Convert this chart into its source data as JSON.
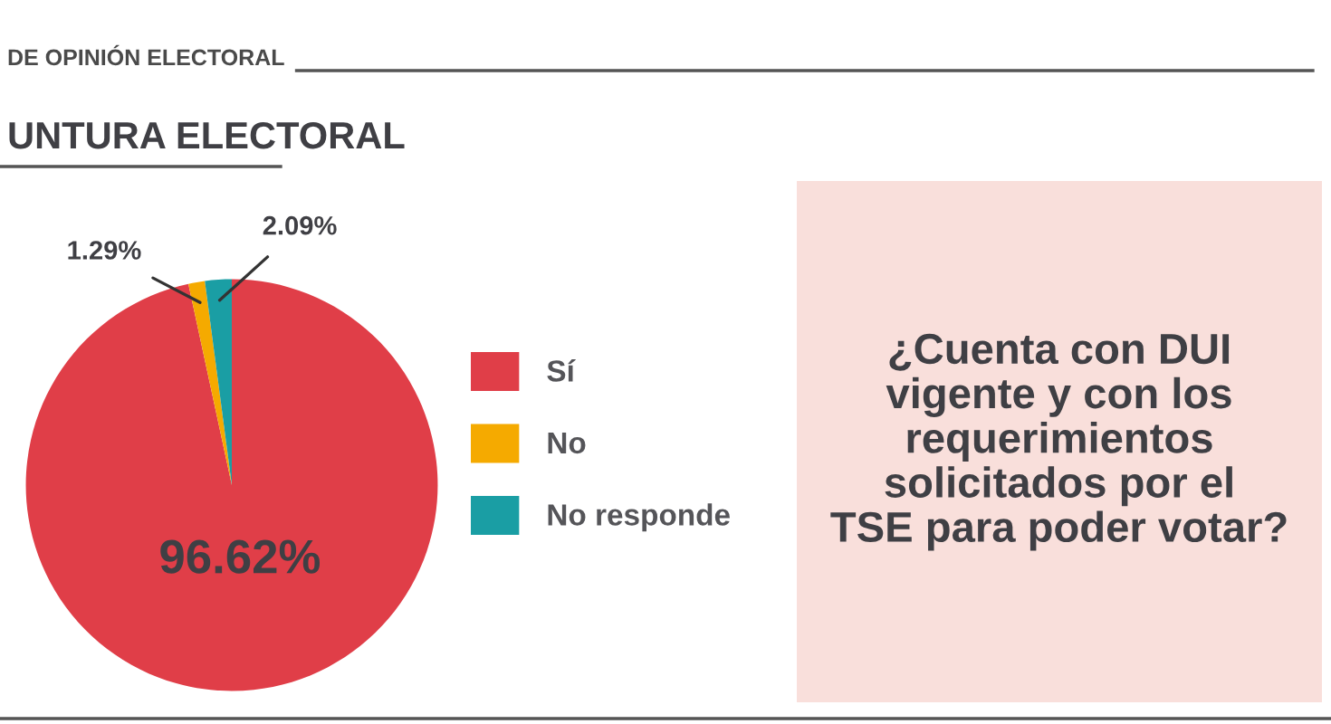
{
  "chart_data": {
    "type": "pie",
    "title": "UNTURA ELECTORAL",
    "subtitle": "DE OPINIÓN ELECTORAL",
    "categories": [
      "Sí",
      "No",
      "No responde"
    ],
    "values": [
      96.62,
      1.29,
      2.09
    ],
    "colors": [
      "#e03e48",
      "#f5aa00",
      "#1a9ea4"
    ],
    "value_labels": [
      "96.62%",
      "1.29%",
      "2.09%"
    ],
    "legend": "right",
    "annotations": [
      "¿Cuenta con DUI\nvigente y con los\nrequerimientos\nsolicitados por el\nTSE para poder votar?"
    ]
  }
}
